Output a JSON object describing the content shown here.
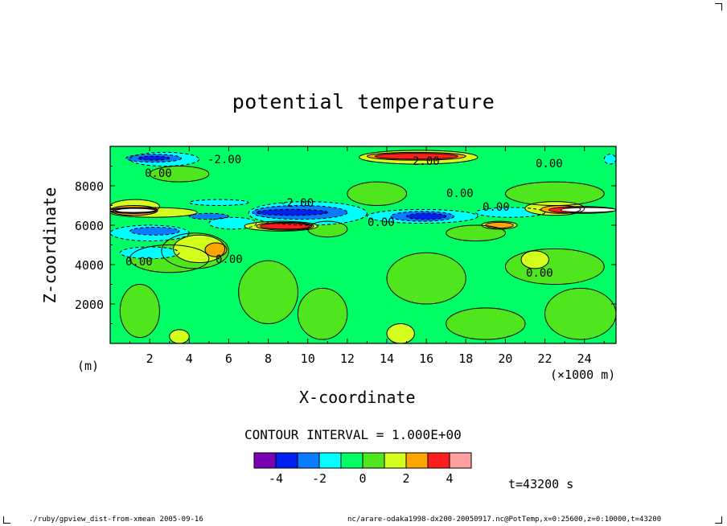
{
  "chart_data": {
    "type": "heatmap",
    "title": "potential temperature",
    "xlabel": "X-coordinate",
    "ylabel": "Z-coordinate",
    "x_unit": "(×1000 m)",
    "y_unit": "(m)",
    "xlim": [
      0,
      25.6
    ],
    "ylim": [
      0,
      10000
    ],
    "x_ticks": [
      2,
      4,
      6,
      8,
      10,
      12,
      14,
      16,
      18,
      20,
      22,
      24
    ],
    "y_ticks": [
      2000,
      4000,
      6000,
      8000
    ],
    "contour_interval_text": "CONTOUR INTERVAL = 1.000E+00",
    "contour_labels": [
      "-2.00",
      "0.00",
      "0.00",
      "0.00",
      "2.00",
      "-2.00",
      "0.00",
      "0.00",
      "0.00",
      "0.00",
      "0.00"
    ],
    "colorbar": {
      "colors": [
        "#7a00b4",
        "#0020f0",
        "#0a7aff",
        "#00ffff",
        "#00ff64",
        "#50e61e",
        "#d2ff1e",
        "#ffa500",
        "#ff1e1e",
        "#ffa0a0"
      ],
      "tick_labels": [
        "-4",
        "-2",
        "0",
        "2",
        "4"
      ]
    },
    "regions": [
      {
        "level": 0,
        "x": [
          0,
          25.6
        ],
        "z": [
          0,
          10000
        ]
      },
      {
        "level": 1,
        "x": [
          0.5,
          2.5
        ],
        "z": [
          300,
          3000
        ]
      },
      {
        "level": 1,
        "x": [
          1,
          5
        ],
        "z": [
          3600,
          5000
        ]
      },
      {
        "level": 1,
        "x": [
          2.6,
          6
        ],
        "z": [
          3800,
          5600
        ]
      },
      {
        "level": 1,
        "x": [
          6.5,
          9.5
        ],
        "z": [
          1000,
          4200
        ]
      },
      {
        "level": 1,
        "x": [
          9.5,
          12
        ],
        "z": [
          200,
          2800
        ]
      },
      {
        "level": 1,
        "x": [
          14,
          18
        ],
        "z": [
          2000,
          4600
        ]
      },
      {
        "level": 1,
        "x": [
          17,
          21
        ],
        "z": [
          200,
          1800
        ]
      },
      {
        "level": 1,
        "x": [
          20,
          25
        ],
        "z": [
          3000,
          4800
        ]
      },
      {
        "level": 1,
        "x": [
          22,
          25.6
        ],
        "z": [
          200,
          2800
        ]
      },
      {
        "level": 1,
        "x": [
          2,
          5
        ],
        "z": [
          8200,
          9000
        ]
      },
      {
        "level": 1,
        "x": [
          12,
          15
        ],
        "z": [
          7000,
          8200
        ]
      },
      {
        "level": 1,
        "x": [
          20,
          25
        ],
        "z": [
          7000,
          8200
        ]
      },
      {
        "level": 1,
        "x": [
          10,
          12
        ],
        "z": [
          5400,
          6200
        ]
      },
      {
        "level": 1,
        "x": [
          17,
          20
        ],
        "z": [
          5200,
          6000
        ]
      },
      {
        "level": 2,
        "x": [
          3.2,
          5.8
        ],
        "z": [
          4100,
          5500
        ]
      },
      {
        "level": 2,
        "x": [
          3,
          4
        ],
        "z": [
          0,
          700
        ]
      },
      {
        "level": 2,
        "x": [
          14,
          15.4
        ],
        "z": [
          0,
          1000
        ]
      },
      {
        "level": 2,
        "x": [
          20.8,
          22.2
        ],
        "z": [
          3800,
          4700
        ]
      },
      {
        "level": 2,
        "x": [
          12.6,
          18.6
        ],
        "z": [
          9100,
          9800
        ]
      },
      {
        "level": 2,
        "x": [
          21,
          24
        ],
        "z": [
          6500,
          7200
        ]
      },
      {
        "level": 2,
        "x": [
          0,
          2.5
        ],
        "z": [
          6600,
          7300
        ]
      },
      {
        "level": 2,
        "x": [
          0,
          4.4
        ],
        "z": [
          6400,
          6900
        ]
      },
      {
        "level": 2,
        "x": [
          6.8,
          10.5
        ],
        "z": [
          5700,
          6200
        ]
      },
      {
        "level": 2,
        "x": [
          18.8,
          20.6
        ],
        "z": [
          5800,
          6200
        ]
      },
      {
        "level": 3,
        "x": [
          4.8,
          5.9
        ],
        "z": [
          4400,
          5100
        ]
      },
      {
        "level": 3,
        "x": [
          13,
          18
        ],
        "z": [
          9300,
          9700
        ]
      },
      {
        "level": 3,
        "x": [
          21.8,
          23.8
        ],
        "z": [
          6600,
          7000
        ]
      },
      {
        "level": 3,
        "x": [
          7.4,
          10.3
        ],
        "z": [
          5750,
          6150
        ]
      },
      {
        "level": 3,
        "x": [
          19,
          20.4
        ],
        "z": [
          5850,
          6150
        ]
      },
      {
        "level": 3,
        "x": [
          0,
          2.4
        ],
        "z": [
          6500,
          7000
        ]
      },
      {
        "level": 4,
        "x": [
          13.4,
          17.6
        ],
        "z": [
          9350,
          9650
        ]
      },
      {
        "level": 4,
        "x": [
          0,
          2.4
        ],
        "z": [
          6600,
          6900
        ]
      },
      {
        "level": 4,
        "x": [
          22.2,
          25.6
        ],
        "z": [
          6600,
          6950
        ]
      },
      {
        "level": 4,
        "x": [
          7.6,
          10.2
        ],
        "z": [
          5800,
          6100
        ]
      },
      {
        "level": 5,
        "x": [
          22.8,
          25.6
        ],
        "z": [
          6650,
          6900
        ]
      },
      {
        "level": 5,
        "x": [
          0,
          2.3
        ],
        "z": [
          6650,
          6850
        ]
      },
      {
        "level": -1,
        "x": [
          1,
          4.5
        ],
        "z": [
          9000,
          9700
        ]
      },
      {
        "level": -1,
        "x": [
          0,
          4
        ],
        "z": [
          5200,
          6000
        ]
      },
      {
        "level": -1,
        "x": [
          0.5,
          3.5
        ],
        "z": [
          4300,
          4900
        ]
      },
      {
        "level": -1,
        "x": [
          5,
          7.4
        ],
        "z": [
          5800,
          6400
        ]
      },
      {
        "level": -1,
        "x": [
          7,
          13
        ],
        "z": [
          6000,
          7200
        ]
      },
      {
        "level": -1,
        "x": [
          13,
          18.6
        ],
        "z": [
          6100,
          6800
        ]
      },
      {
        "level": -1,
        "x": [
          18.5,
          22
        ],
        "z": [
          6400,
          6900
        ]
      },
      {
        "level": -1,
        "x": [
          25,
          25.6
        ],
        "z": [
          9100,
          9600
        ]
      },
      {
        "level": -1,
        "x": [
          4,
          7
        ],
        "z": [
          7000,
          7300
        ]
      },
      {
        "level": -2,
        "x": [
          0.8,
          3.6
        ],
        "z": [
          9200,
          9600
        ]
      },
      {
        "level": -2,
        "x": [
          1,
          3.5
        ],
        "z": [
          5500,
          5900
        ]
      },
      {
        "level": -2,
        "x": [
          7.2,
          12
        ],
        "z": [
          6300,
          7000
        ]
      },
      {
        "level": -2,
        "x": [
          14.2,
          17.4
        ],
        "z": [
          6200,
          6700
        ]
      },
      {
        "level": -2,
        "x": [
          4,
          6
        ],
        "z": [
          6300,
          6600
        ]
      },
      {
        "level": -3,
        "x": [
          7.4,
          11
        ],
        "z": [
          6500,
          6800
        ]
      },
      {
        "level": -3,
        "x": [
          1.4,
          3
        ],
        "z": [
          9300,
          9500
        ]
      },
      {
        "level": -3,
        "x": [
          15,
          17
        ],
        "z": [
          6300,
          6600
        ]
      }
    ]
  }
}
